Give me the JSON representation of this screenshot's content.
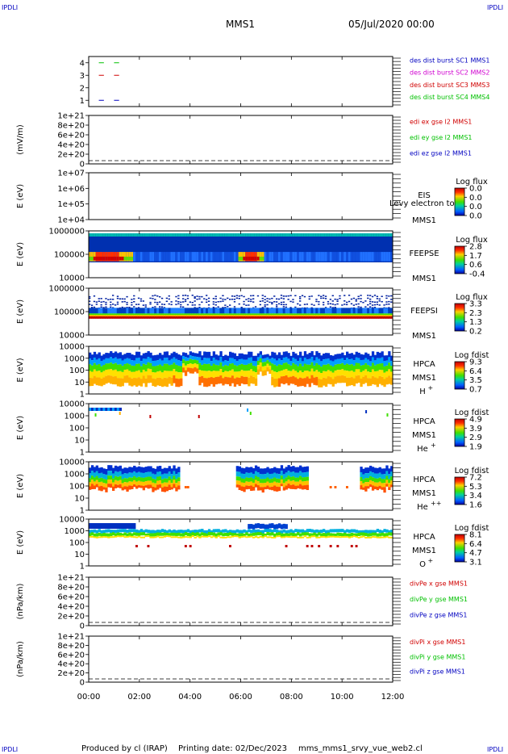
{
  "header": {
    "corner_tl": "IPDLI",
    "corner_tr": "IPDLI",
    "corner_bl": "IPDLI",
    "corner_br": "IPDLI",
    "mission": "MMS1",
    "date": "05/Jul/2020 00:00"
  },
  "footer": {
    "producer": "Produced by cl (IRAP)",
    "printing": "Printing date: 02/Dec/2023",
    "script": "mms_mms1_srvy_vue_web2.cl"
  },
  "colors": {
    "red": "#d00000",
    "green": "#00c000",
    "blue": "#0000c0",
    "magenta": "#d000d0"
  },
  "chart_data": [
    {
      "type": "line",
      "name": "burst-flags",
      "ylim": [
        0.5,
        4.5
      ],
      "y_ticks": [
        "1",
        "2",
        "3",
        "4"
      ],
      "legend": [
        {
          "text": "des dist burst SC1 MMS1",
          "color": "#0000c0"
        },
        {
          "text": "des dist burst SC2 MMS2",
          "color": "#d000d0"
        },
        {
          "text": "des dist burst SC3 MMS3",
          "color": "#d00000"
        },
        {
          "text": "des dist burst SC4 MMS4",
          "color": "#00c000"
        }
      ],
      "series": [
        {
          "level": 4,
          "color": "#00c000",
          "segments": [
            [
              0.4,
              0.6
            ],
            [
              1.0,
              1.2
            ]
          ]
        },
        {
          "level": 3,
          "color": "#d00000",
          "segments": [
            [
              0.4,
              0.6
            ],
            [
              1.0,
              1.2
            ]
          ]
        },
        {
          "level": 1,
          "color": "#0000c0",
          "segments": [
            [
              0.4,
              0.6
            ],
            [
              1.0,
              1.2
            ]
          ]
        }
      ]
    },
    {
      "type": "line",
      "name": "edi-e-field",
      "ylabel": "(mV/m)",
      "ylim": [
        0,
        1e+21
      ],
      "y_ticks": [
        "0",
        "2e+20",
        "4e+20",
        "6e+20",
        "8e+20",
        "1e+21"
      ],
      "legend": [
        {
          "text": "edi ex gse l2 MMS1",
          "color": "#d00000"
        },
        {
          "text": "edi ey gse l2 MMS1",
          "color": "#00c000"
        },
        {
          "text": "edi ez gse l2 MMS1",
          "color": "#0000c0"
        }
      ],
      "zero_line": true
    },
    {
      "type": "heatmap",
      "name": "eis",
      "ylabel": "E (eV)",
      "y_ticks": [
        "1e+04",
        "1e+05",
        "1e+06",
        "1e+07"
      ],
      "label": "EIS",
      "subtitle": "Levy electron to",
      "label2": "MMS1",
      "colorbar": {
        "title": "Log flux",
        "ticks": [
          "0.0",
          "0.0",
          "0.0",
          "0.0"
        ]
      }
    },
    {
      "type": "heatmap",
      "name": "feeps-e",
      "ylabel": "E (eV)",
      "y_ticks": [
        "10000",
        "100000",
        "1000000"
      ],
      "label": "FEEPSE",
      "label2": "MMS1",
      "colorbar": {
        "title": "Log flux",
        "ticks": [
          "2.8",
          "1.7",
          "0.6",
          "-0.4"
        ]
      }
    },
    {
      "type": "heatmap",
      "name": "feeps-i",
      "ylabel": "E (eV)",
      "y_ticks": [
        "10000",
        "100000",
        "1000000"
      ],
      "label": "FEEPSI",
      "label2": "MMS1",
      "colorbar": {
        "title": "Log flux",
        "ticks": [
          "3.3",
          "2.3",
          "1.3",
          "0.2"
        ]
      }
    },
    {
      "type": "heatmap",
      "name": "hpca-h",
      "ylabel": "E (eV)",
      "y_ticks": [
        "1",
        "10",
        "100",
        "1000",
        "10000"
      ],
      "label": "HPCA",
      "label2": "MMS1",
      "species": "H",
      "species_sup": "+",
      "colorbar": {
        "title": "Log fdist",
        "ticks": [
          "9.3",
          "6.4",
          "3.5",
          "0.7"
        ]
      }
    },
    {
      "type": "heatmap",
      "name": "hpca-he",
      "ylabel": "E (eV)",
      "y_ticks": [
        "1",
        "10",
        "100",
        "1000",
        "10000"
      ],
      "label": "HPCA",
      "label2": "MMS1",
      "species": "He",
      "species_sup": "+",
      "colorbar": {
        "title": "Log fdist",
        "ticks": [
          "4.9",
          "3.9",
          "2.9",
          "1.9"
        ]
      }
    },
    {
      "type": "heatmap",
      "name": "hpca-he2",
      "ylabel": "E (eV)",
      "y_ticks": [
        "1",
        "10",
        "100",
        "1000",
        "10000"
      ],
      "label": "HPCA",
      "label2": "MMS1",
      "species": "He",
      "species_sup": "++",
      "colorbar": {
        "title": "Log fdist",
        "ticks": [
          "7.2",
          "5.3",
          "3.4",
          "1.6"
        ]
      }
    },
    {
      "type": "heatmap",
      "name": "hpca-o",
      "ylabel": "E (eV)",
      "y_ticks": [
        "1",
        "10",
        "100",
        "1000",
        "10000"
      ],
      "label": "HPCA",
      "label2": "MMS1",
      "species": "O",
      "species_sup": "+",
      "colorbar": {
        "title": "Log fdist",
        "ticks": [
          "8.1",
          "6.4",
          "4.7",
          "3.1"
        ]
      }
    },
    {
      "type": "line",
      "name": "divpe",
      "ylabel": "(nPa/km)",
      "ylim": [
        0,
        1e+21
      ],
      "y_ticks": [
        "0",
        "2e+20",
        "4e+20",
        "6e+20",
        "8e+20",
        "1e+21"
      ],
      "legend": [
        {
          "text": "divPe x gse MMS1",
          "color": "#d00000"
        },
        {
          "text": "divPe y gse MMS1",
          "color": "#00c000"
        },
        {
          "text": "divPe z gse MMS1",
          "color": "#0000c0"
        }
      ],
      "zero_line": true
    },
    {
      "type": "line",
      "name": "divpi",
      "ylabel": "(nPa/km)",
      "ylim": [
        0,
        1e+21
      ],
      "y_ticks": [
        "0",
        "2e+20",
        "4e+20",
        "6e+20",
        "8e+20",
        "1e+21"
      ],
      "legend": [
        {
          "text": "divPi x gse MMS1",
          "color": "#d00000"
        },
        {
          "text": "divPi y gse MMS1",
          "color": "#00c000"
        },
        {
          "text": "divPi z gse MMS1",
          "color": "#0000c0"
        }
      ],
      "zero_line": true
    }
  ],
  "x_axis": {
    "xlim": [
      0,
      12
    ],
    "ticks": [
      {
        "value": 0,
        "label": "00:00"
      },
      {
        "value": 2,
        "label": "02:00"
      },
      {
        "value": 4,
        "label": "04:00"
      },
      {
        "value": 6,
        "label": "06:00"
      },
      {
        "value": 8,
        "label": "08:00"
      },
      {
        "value": 10,
        "label": "10:00"
      },
      {
        "value": 12,
        "label": "12:00"
      }
    ]
  }
}
